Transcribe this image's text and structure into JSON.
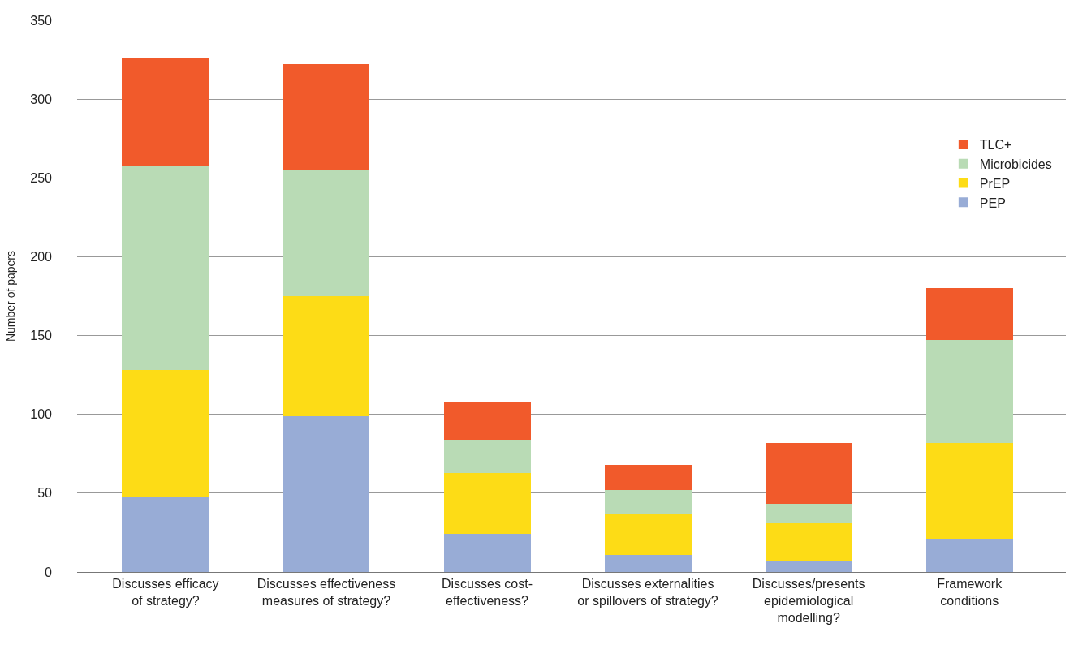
{
  "chart_data": {
    "type": "bar",
    "stacked": true,
    "ylabel": "Number of papers",
    "categories": [
      "Discusses efficacy\nof strategy?",
      "Discusses effectiveness\nmeasures of strategy?",
      "Discusses cost-\neffectiveness?",
      "Discusses externalities\nor spillovers of strategy?",
      "Discusses/presents\nepidemiological\nmodelling?",
      "Framework\nconditions"
    ],
    "series": [
      {
        "name": "PEP",
        "color": "#98acd6",
        "values": [
          48,
          99,
          24,
          11,
          7,
          21
        ]
      },
      {
        "name": "PrEP",
        "color": "#fddc16",
        "values": [
          80,
          76,
          39,
          26,
          24,
          61
        ]
      },
      {
        "name": "Microbicides",
        "color": "#b9dbb5",
        "values": [
          130,
          80,
          21,
          15,
          12,
          65
        ]
      },
      {
        "name": "TLC+",
        "color": "#f15a2b",
        "values": [
          68,
          67,
          24,
          16,
          39,
          33
        ]
      }
    ],
    "ylim": [
      0,
      350
    ],
    "yticks": [
      0,
      50,
      100,
      150,
      200,
      250,
      300,
      350
    ],
    "grid": "y",
    "legend": "top right"
  }
}
